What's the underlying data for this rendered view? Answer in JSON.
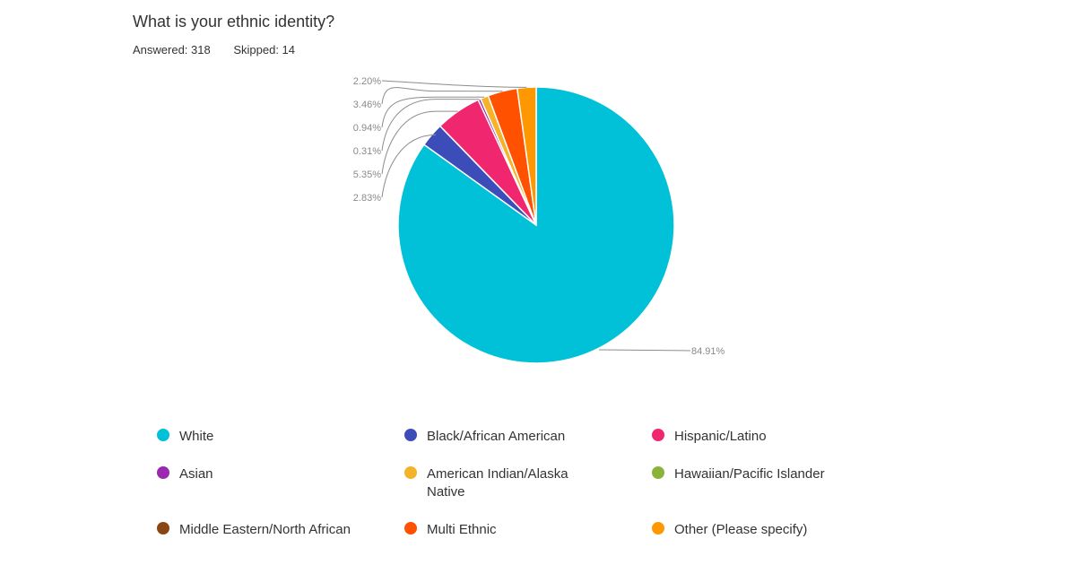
{
  "header": {
    "title": "What is your ethnic identity?",
    "answered": "Answered: 318",
    "skipped": "Skipped: 14"
  },
  "chart_data": {
    "type": "pie",
    "title": "What is your ethnic identity?",
    "start_angle": "12 o'clock, clockwise",
    "categories": [
      "White",
      "Black/African American",
      "Hispanic/Latino",
      "Asian",
      "American Indian/Alaska Native",
      "Hawaiian/Pacific Islander",
      "Middle Eastern/North African",
      "Multi Ethnic",
      "Other (Please specify)"
    ],
    "values": [
      84.91,
      2.83,
      5.35,
      0.31,
      0.94,
      0.0,
      0.0,
      3.46,
      2.2
    ],
    "labels": [
      "84.91%",
      "2.83%",
      "5.35%",
      "0.31%",
      "0.94%",
      "",
      "",
      "3.46%",
      "2.20%"
    ],
    "colors": [
      "#00C1D8",
      "#3C4DBA",
      "#F0266F",
      "#9C27B0",
      "#F4B328",
      "#8BB33A",
      "#8B4513",
      "#FF5100",
      "#FF9800"
    ],
    "legend_position": "bottom"
  },
  "legend": {
    "items": [
      {
        "label": "White",
        "color": "#00C1D8"
      },
      {
        "label": "Black/African American",
        "color": "#3C4DBA"
      },
      {
        "label": "Hispanic/Latino",
        "color": "#F0266F"
      },
      {
        "label": "Asian",
        "color": "#9C27B0"
      },
      {
        "label": "American Indian/Alaska Native",
        "color": "#F4B328"
      },
      {
        "label": "Hawaiian/Pacific Islander",
        "color": "#8BB33A"
      },
      {
        "label": "Middle Eastern/North African",
        "color": "#8B4513"
      },
      {
        "label": "Multi Ethnic",
        "color": "#FF5100"
      },
      {
        "label": "Other (Please specify)",
        "color": "#FF9800"
      }
    ]
  }
}
